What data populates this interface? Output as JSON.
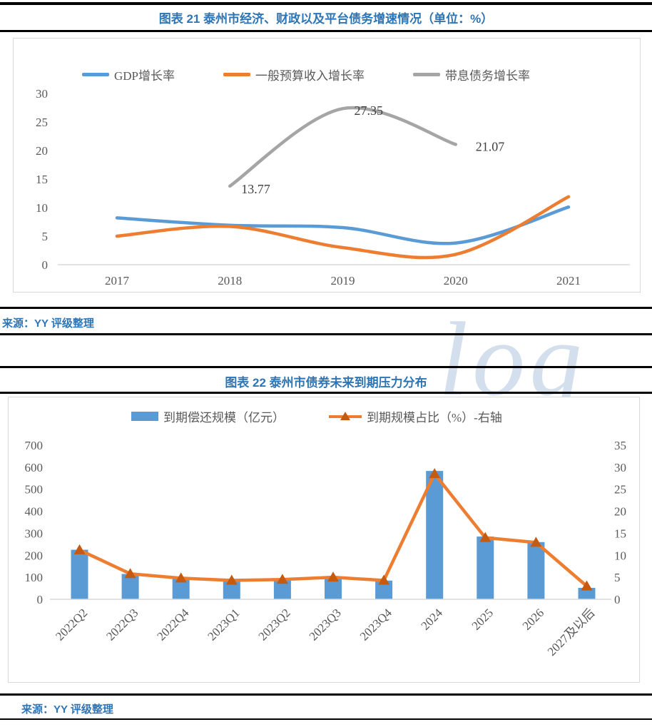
{
  "colors": {
    "accent_blue": "#5B9BD5",
    "accent_orange": "#ED7D31",
    "accent_gray": "#A5A5A5",
    "marker_brown": "#C55A11",
    "title_blue": "#2E75B6",
    "axis_text": "#595959",
    "axis_line": "#D9D9D9"
  },
  "watermark_text": "log",
  "figure1": {
    "title": "图表 21 泰州市经济、财政以及平台债务增速情况（单位：%）",
    "source": "来源：YY 评级整理"
  },
  "figure2": {
    "title": "图表 22 泰州市债券未来到期压力分布",
    "source": "来源：YY 评级整理"
  },
  "chart_data": [
    {
      "type": "line",
      "title": "泰州市经济、财政以及平台债务增速情况（单位：%）",
      "categories": [
        "2017",
        "2018",
        "2019",
        "2020",
        "2021"
      ],
      "series": [
        {
          "name": "GDP增长率",
          "color": "#5B9BD5",
          "values": [
            8.2,
            6.9,
            6.5,
            3.8,
            10.1
          ]
        },
        {
          "name": "一般预算收入增长率",
          "color": "#ED7D31",
          "values": [
            5.0,
            6.7,
            3.0,
            1.8,
            11.9
          ]
        },
        {
          "name": "带息债务增长率",
          "color": "#A5A5A5",
          "values": [
            null,
            13.77,
            27.35,
            21.07,
            null
          ],
          "point_labels": [
            null,
            "13.77",
            "27.35",
            "21.07",
            null
          ]
        }
      ],
      "ylim": [
        0,
        30
      ],
      "ytick_step": 5,
      "grid": false,
      "legend_position": "top",
      "smoothed": true
    },
    {
      "type": "bar",
      "title": "泰州市债券未来到期压力分布",
      "categories": [
        "2022Q2",
        "2022Q3",
        "2022Q4",
        "2023Q1",
        "2023Q2",
        "2023Q3",
        "2023Q4",
        "2024",
        "2025",
        "2026",
        "2027及以后"
      ],
      "series": [
        {
          "name": "到期偿还规模（亿元）",
          "chart_type": "bar",
          "axis": "left",
          "color": "#5B9BD5",
          "values": [
            225,
            115,
            95,
            85,
            90,
            100,
            85,
            583,
            285,
            260,
            52
          ]
        },
        {
          "name": "到期规模占比（%）-右轴",
          "chart_type": "line",
          "axis": "right",
          "color": "#ED7D31",
          "marker": "triangle",
          "marker_color": "#C55A11",
          "values": [
            11.2,
            5.8,
            4.8,
            4.3,
            4.5,
            5.0,
            4.3,
            28.5,
            14.0,
            12.9,
            3.0
          ]
        }
      ],
      "ylim_left": [
        0,
        700
      ],
      "ytick_step_left": 100,
      "ylim_right": [
        0,
        35
      ],
      "ytick_step_right": 5,
      "grid": false,
      "legend_position": "top",
      "x_label_rotation": -45
    }
  ]
}
